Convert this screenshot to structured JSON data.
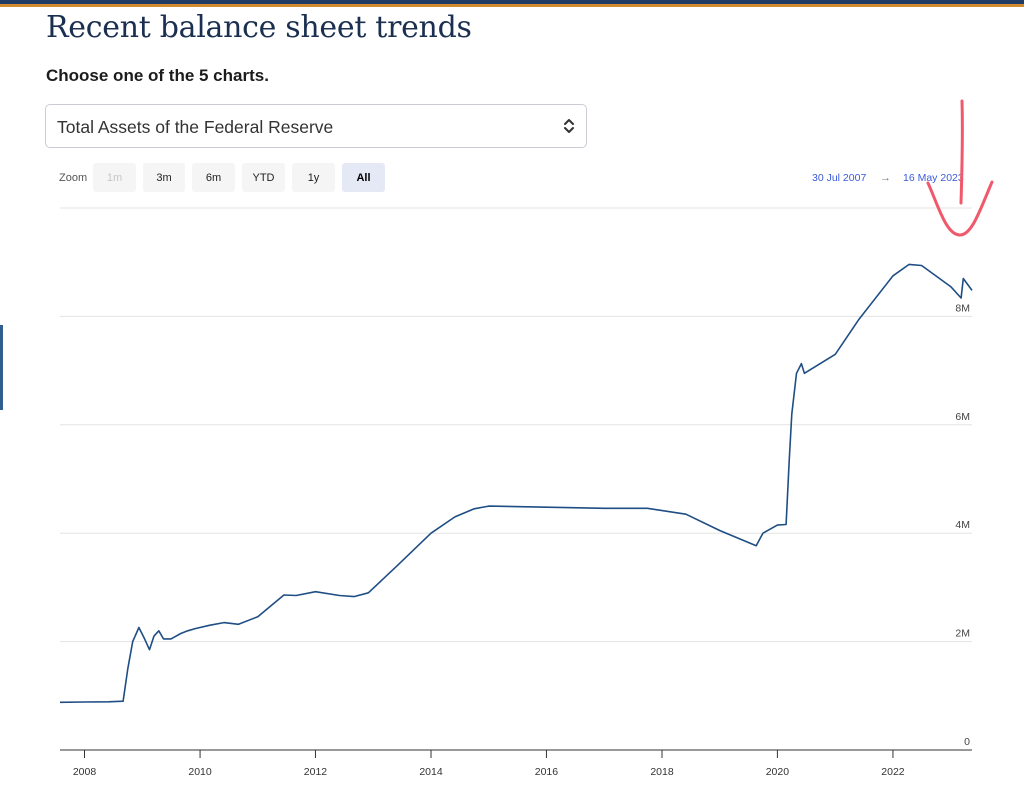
{
  "page": {
    "title": "Recent balance sheet trends",
    "prompt": "Choose one of the 5 charts."
  },
  "selector": {
    "selected": "Total Assets of the Federal Reserve",
    "icon": "chevron-updown-icon"
  },
  "zoom": {
    "label": "Zoom",
    "buttons": [
      "1m",
      "3m",
      "6m",
      "YTD",
      "1y",
      "All"
    ],
    "disabled": "1m",
    "active": "All"
  },
  "range": {
    "from": "30 Jul 2007",
    "arrow": "→",
    "to": "16 May 2023"
  },
  "colors": {
    "line": "#1f4e84",
    "title": "#1b2f50",
    "range_text": "#3b5bd9",
    "annotation": "#f0596b"
  },
  "chart_data": {
    "type": "line",
    "title": "",
    "xlabel": "",
    "ylabel": "",
    "xlim": [
      "2007-07-30",
      "2023-05-16"
    ],
    "ylim": [
      0,
      10000000
    ],
    "x_ticks": [
      "2008",
      "2010",
      "2012",
      "2014",
      "2016",
      "2018",
      "2020",
      "2022"
    ],
    "y_ticks": [
      {
        "value": 0,
        "label": "0"
      },
      {
        "value": 2000000,
        "label": "2M"
      },
      {
        "value": 4000000,
        "label": "4M"
      },
      {
        "value": 6000000,
        "label": "6M"
      },
      {
        "value": 8000000,
        "label": "8M"
      }
    ],
    "grid": "horizontal",
    "series": [
      {
        "x": [
          "2007-07-30",
          "2008-01-01",
          "2008-06-01",
          "2008-09-01",
          "2008-10-01",
          "2008-11-01",
          "2008-12-10",
          "2009-01-15",
          "2009-02-15",
          "2009-03-15",
          "2009-04-15",
          "2009-05-15",
          "2009-07-01",
          "2009-09-01",
          "2009-10-15",
          "2009-12-01",
          "2010-03-01",
          "2010-06-01",
          "2010-09-01",
          "2011-01-01",
          "2011-06-15",
          "2011-09-01",
          "2012-01-01",
          "2012-06-01",
          "2012-09-01",
          "2012-12-01",
          "2013-06-01",
          "2014-01-01",
          "2014-06-01",
          "2014-10-01",
          "2015-01-01",
          "2016-01-01",
          "2017-01-01",
          "2017-10-01",
          "2018-06-01",
          "2019-01-01",
          "2019-08-20",
          "2019-10-01",
          "2020-01-01",
          "2020-02-25",
          "2020-03-15",
          "2020-04-01",
          "2020-05-01",
          "2020-06-01",
          "2020-06-20",
          "2021-01-01",
          "2021-06-01",
          "2022-01-01",
          "2022-04-13",
          "2022-07-01",
          "2023-01-01",
          "2023-03-08",
          "2023-03-22",
          "2023-05-16"
        ],
        "y": [
          880000,
          885000,
          890000,
          900000,
          1500000,
          2000000,
          2260000,
          2050000,
          1850000,
          2100000,
          2200000,
          2050000,
          2050000,
          2150000,
          2200000,
          2240000,
          2300000,
          2350000,
          2320000,
          2460000,
          2860000,
          2850000,
          2920000,
          2850000,
          2830000,
          2900000,
          3400000,
          4000000,
          4300000,
          4450000,
          4500000,
          4480000,
          4460000,
          4460000,
          4350000,
          4050000,
          3770000,
          4000000,
          4150000,
          4160000,
          5300000,
          6200000,
          6950000,
          7130000,
          6950000,
          7300000,
          7950000,
          8750000,
          8960000,
          8940000,
          8550000,
          8340000,
          8700000,
          8480000
        ]
      }
    ]
  }
}
